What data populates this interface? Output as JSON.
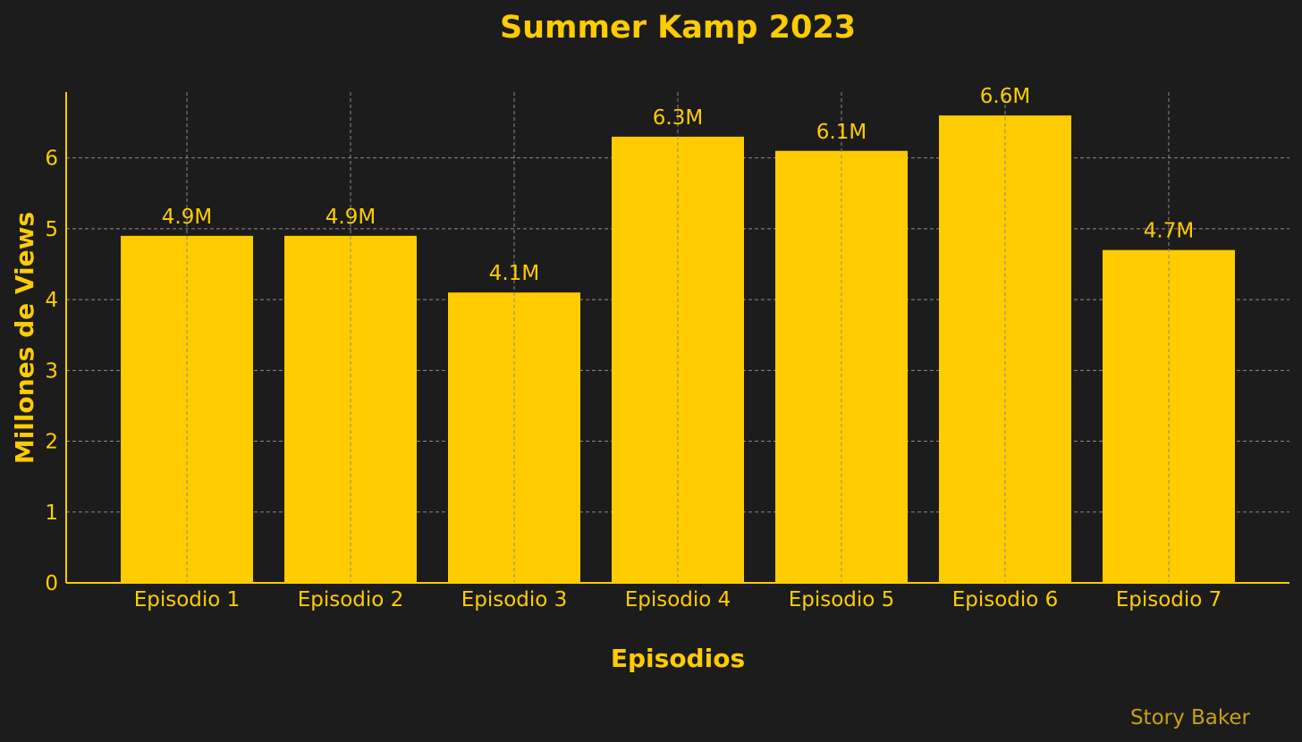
{
  "chart_data": {
    "type": "bar",
    "title": "Summer Kamp 2023",
    "xlabel": "Episodios",
    "ylabel": "Millones de Views",
    "categories": [
      "Episodio 1",
      "Episodio 2",
      "Episodio 3",
      "Episodio 4",
      "Episodio 5",
      "Episodio 6",
      "Episodio 7"
    ],
    "values": [
      4.9,
      4.9,
      4.1,
      6.3,
      6.1,
      6.6,
      4.7
    ],
    "data_labels": [
      "4.9M",
      "4.9M",
      "4.1M",
      "6.3M",
      "6.1M",
      "6.6M",
      "4.7M"
    ],
    "yticks": [
      0,
      1,
      2,
      3,
      4,
      5,
      6
    ],
    "ylim": [
      0,
      6.93
    ],
    "grid": true,
    "bar_color": "#ffcc00",
    "background_color": "#1c1c1c"
  },
  "watermark": "Story Baker"
}
